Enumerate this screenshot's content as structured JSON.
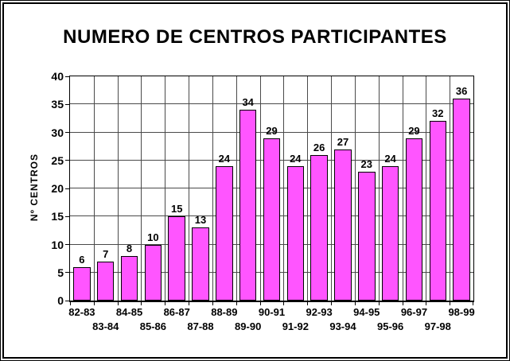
{
  "chart_data": {
    "type": "bar",
    "title": "NUMERO DE CENTROS PARTICIPANTES",
    "ylabel": "Nº CENTROS",
    "xlabel": "",
    "categories": [
      "82-83",
      "83-84",
      "84-85",
      "85-86",
      "86-87",
      "87-88",
      "88-89",
      "89-90",
      "90-91",
      "91-92",
      "92-93",
      "93-94",
      "94-95",
      "95-96",
      "96-97",
      "97-98",
      "98-99"
    ],
    "values": [
      6,
      7,
      8,
      10,
      15,
      13,
      24,
      34,
      29,
      24,
      26,
      27,
      23,
      24,
      29,
      32,
      36
    ],
    "ylim": [
      0,
      40
    ],
    "ytick_step": 5,
    "yticks": [
      0,
      5,
      10,
      15,
      20,
      25,
      30,
      35,
      40
    ],
    "grid": "both",
    "legend": "none",
    "data_labels": true,
    "xlabel_layout": "staggered-two-rows",
    "colors": {
      "bar_fill": "#ff55ff",
      "bar_border": "#000000",
      "grid": "#4a4a4a",
      "background": "#ffffff",
      "frame_border": "#000000",
      "text": "#000000"
    }
  }
}
